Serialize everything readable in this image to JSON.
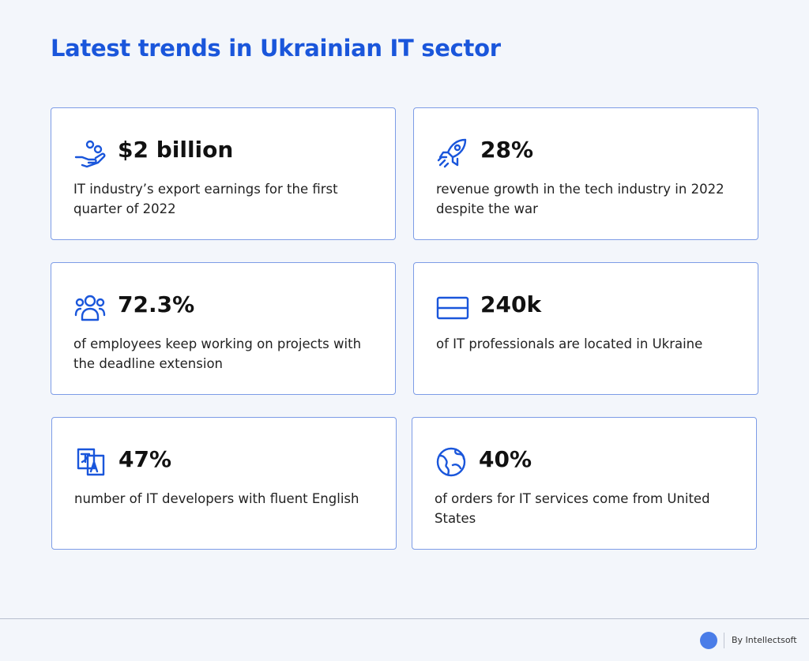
{
  "header": {
    "title": "Latest trends in Ukrainian IT sector"
  },
  "cards": [
    {
      "stat": "$2 billion",
      "text": "IT industry’s export earnings for the first quarter of 2022"
    },
    {
      "stat": "28%",
      "text": "revenue growth in the tech industry in 2022 despite the war"
    },
    {
      "stat": "72.3%",
      "text": "of employees keep working on projects with the deadline extension"
    },
    {
      "stat": "240k",
      "text": "of IT professionals are located in Ukraine"
    },
    {
      "stat": "47%",
      "text": "number of IT developers with fluent English"
    },
    {
      "stat": "40%",
      "text": "of orders for IT services come from United States"
    }
  ],
  "footer": {
    "credit": "By Intellectsoft"
  }
}
